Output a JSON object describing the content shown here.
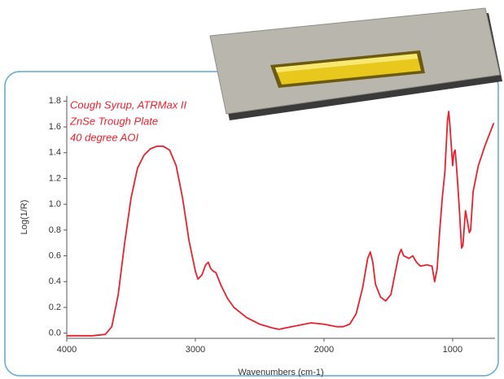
{
  "chart_data": {
    "type": "line",
    "xlabel": "Wavenumbers (cm-1)",
    "ylabel": "Log(1/R)",
    "annotations": [
      "Cough Syrup, ATRMax II",
      "ZnSe Trough Plate",
      "40 degree AOI"
    ],
    "color": "#e8212e",
    "xlim": [
      4000,
      670
    ],
    "xticks": [
      4000,
      3000,
      2000,
      1000
    ],
    "ylim": [
      -0.04,
      1.84
    ],
    "yticks": [
      {
        "value": 0,
        "label": "0.0"
      },
      0.2,
      0.4,
      0.6,
      0.8,
      {
        "value": 1,
        "label": "1.0"
      },
      1.2,
      1.4,
      1.6,
      1.8
    ],
    "x": [
      4000,
      3800,
      3700,
      3650,
      3600,
      3550,
      3500,
      3450,
      3400,
      3350,
      3300,
      3250,
      3200,
      3150,
      3100,
      3050,
      3000,
      2980,
      2950,
      2920,
      2900,
      2880,
      2860,
      2840,
      2800,
      2750,
      2700,
      2600,
      2500,
      2400,
      2350,
      2300,
      2200,
      2100,
      2000,
      1900,
      1850,
      1800,
      1750,
      1700,
      1660,
      1640,
      1620,
      1600,
      1560,
      1520,
      1480,
      1450,
      1420,
      1400,
      1380,
      1340,
      1310,
      1280,
      1250,
      1200,
      1160,
      1140,
      1120,
      1100,
      1080,
      1060,
      1050,
      1040,
      1030,
      1020,
      1000,
      990,
      980,
      970,
      950,
      930,
      920,
      900,
      890,
      870,
      860,
      840,
      800,
      750,
      700,
      680
    ],
    "values": [
      -0.02,
      -0.02,
      -0.01,
      0.05,
      0.3,
      0.7,
      1.05,
      1.28,
      1.38,
      1.43,
      1.45,
      1.45,
      1.42,
      1.3,
      1.05,
      0.72,
      0.48,
      0.42,
      0.45,
      0.53,
      0.55,
      0.5,
      0.48,
      0.47,
      0.37,
      0.27,
      0.2,
      0.12,
      0.07,
      0.04,
      0.03,
      0.04,
      0.06,
      0.08,
      0.07,
      0.05,
      0.05,
      0.07,
      0.15,
      0.35,
      0.58,
      0.63,
      0.55,
      0.38,
      0.28,
      0.25,
      0.3,
      0.45,
      0.6,
      0.65,
      0.6,
      0.58,
      0.6,
      0.55,
      0.52,
      0.53,
      0.52,
      0.4,
      0.5,
      0.8,
      1.05,
      1.25,
      1.45,
      1.65,
      1.72,
      1.6,
      1.3,
      1.4,
      1.42,
      1.3,
      1.0,
      0.66,
      0.68,
      0.95,
      0.9,
      0.78,
      0.8,
      1.1,
      1.3,
      1.45,
      1.58,
      1.63
    ]
  }
}
